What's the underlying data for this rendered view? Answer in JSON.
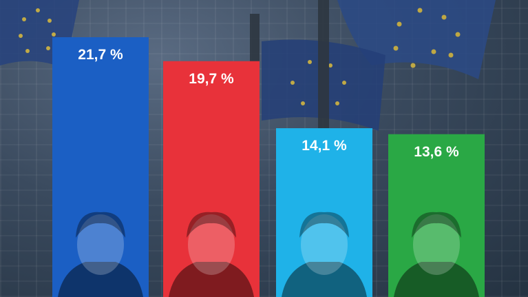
{
  "chart_data": {
    "type": "bar",
    "categories": [
      "",
      "",
      "",
      ""
    ],
    "values": [
      21.7,
      19.7,
      14.1,
      13.6
    ],
    "labels": [
      "21,7 %",
      "19,7 %",
      "14,1 %",
      "13,6 %"
    ],
    "colors": [
      "#1b5fc4",
      "#e8323a",
      "#1fb2e8",
      "#2aa845"
    ],
    "portraits": [
      "person-1-photo",
      "person-2-photo",
      "person-3-photo",
      "person-4-photo"
    ],
    "title": "",
    "xlabel": "",
    "ylabel": "",
    "ylim": [
      0,
      21.7
    ],
    "grid": false,
    "legend": "none"
  },
  "background": {
    "description_icon": "eu-flags-building-photo"
  }
}
